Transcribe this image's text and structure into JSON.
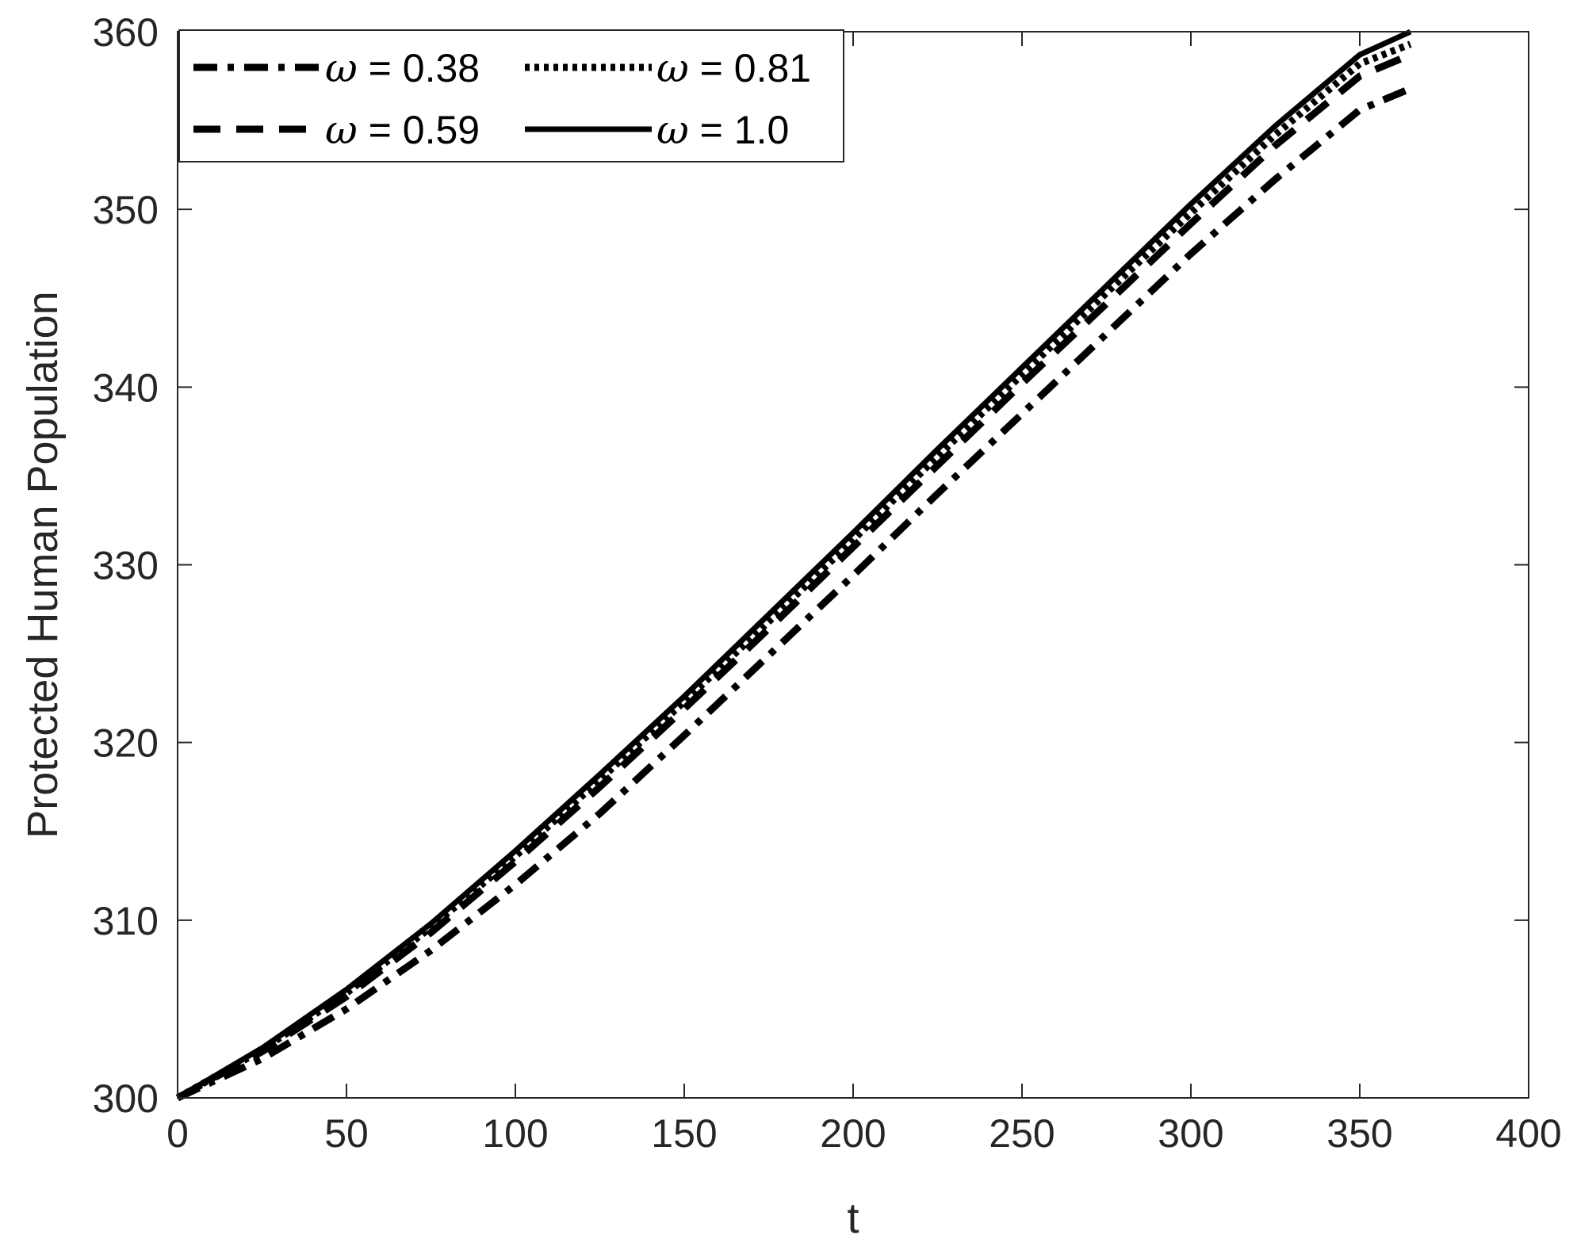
{
  "chart_data": {
    "type": "line",
    "title": "",
    "xlabel": "t",
    "ylabel": "Protected Human Population",
    "xlim": [
      0,
      400
    ],
    "ylim": [
      300,
      360
    ],
    "xticks": [
      0,
      50,
      100,
      150,
      200,
      250,
      300,
      350,
      400
    ],
    "yticks": [
      300,
      310,
      320,
      330,
      340,
      350,
      360
    ],
    "grid": false,
    "legend_position": "top-left",
    "line_color": "#000000",
    "series": [
      {
        "name": "ω = 0.38",
        "style": "dashdot",
        "x": [
          0,
          25,
          50,
          75,
          100,
          125,
          150,
          175,
          200,
          225,
          250,
          275,
          300,
          325,
          350,
          365
        ],
        "y": [
          300,
          302.2,
          305.0,
          308.3,
          312.0,
          316.0,
          320.4,
          324.9,
          329.4,
          334.0,
          338.5,
          343.0,
          347.5,
          351.7,
          355.6,
          356.8
        ]
      },
      {
        "name": "ω = 0.59",
        "style": "dashed",
        "x": [
          0,
          25,
          50,
          75,
          100,
          125,
          150,
          175,
          200,
          225,
          250,
          275,
          300,
          325,
          350,
          365
        ],
        "y": [
          300,
          302.6,
          305.7,
          309.3,
          313.3,
          317.5,
          321.9,
          326.4,
          331.0,
          335.6,
          340.2,
          344.7,
          349.2,
          353.6,
          357.5,
          358.7
        ]
      },
      {
        "name": "ω = 0.81",
        "style": "dotted",
        "x": [
          0,
          25,
          50,
          75,
          100,
          125,
          150,
          175,
          200,
          225,
          250,
          275,
          300,
          325,
          350,
          365
        ],
        "y": [
          300,
          302.7,
          305.9,
          309.6,
          313.6,
          317.9,
          322.3,
          326.8,
          331.4,
          336.1,
          340.7,
          345.3,
          349.8,
          354.2,
          358.2,
          359.3
        ]
      },
      {
        "name": "ω = 1.0",
        "style": "solid",
        "x": [
          0,
          25,
          50,
          75,
          100,
          125,
          150,
          175,
          200,
          225,
          250,
          275,
          300,
          325,
          350,
          365
        ],
        "y": [
          300,
          302.8,
          306.1,
          309.8,
          313.9,
          318.2,
          322.6,
          327.2,
          331.8,
          336.5,
          341.1,
          345.7,
          350.3,
          354.7,
          358.7,
          360.0
        ]
      }
    ]
  }
}
